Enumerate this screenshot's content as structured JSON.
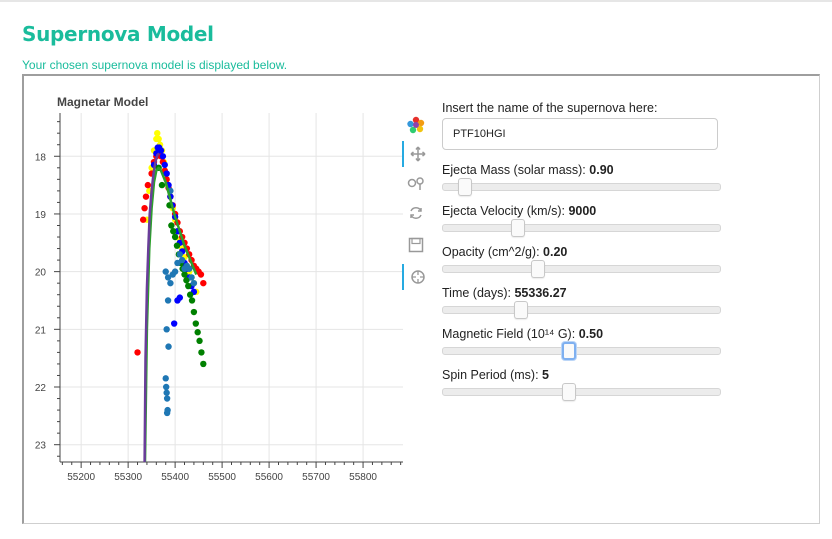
{
  "page": {
    "title": "Supernova Model",
    "subtitle": "Your chosen supernova model is displayed below."
  },
  "plot": {
    "title": "Magnetar Model"
  },
  "toolbar": [
    {
      "name": "bokeh-logo-icon"
    },
    {
      "name": "pan-tool-icon",
      "active": true
    },
    {
      "name": "box-zoom-tool-icon"
    },
    {
      "name": "reset-tool-icon"
    },
    {
      "name": "save-tool-icon"
    },
    {
      "name": "hover-tool-icon",
      "active": true
    }
  ],
  "form": {
    "name_label": "Insert the name of the supernova here:",
    "name_value": "PTF10HGI",
    "sliders": [
      {
        "id": "ejecta-mass",
        "label": "Ejecta Mass (solar mass):",
        "value": "0.90",
        "fraction": 0.08
      },
      {
        "id": "ejecta-velocity",
        "label": "Ejecta Velocity (km/s):",
        "value": "9000",
        "fraction": 0.27
      },
      {
        "id": "opacity",
        "label": "Opacity (cm^2/g):",
        "value": "0.20",
        "fraction": 0.34
      },
      {
        "id": "time",
        "label": "Time (days):",
        "value": "55336.27",
        "fraction": 0.28
      },
      {
        "id": "magnetic-field",
        "label": "Magnetic Field (10¹⁴ G):",
        "value": "0.50",
        "fraction": 0.45,
        "focus": true
      },
      {
        "id": "spin-period",
        "label": "Spin Period (ms):",
        "value": "5",
        "fraction": 0.45
      }
    ]
  },
  "chart_data": {
    "type": "scatter",
    "title": "Magnetar Model",
    "xlabel": "",
    "ylabel": "",
    "xlim": [
      55155,
      55885
    ],
    "ylim": [
      17.25,
      23.3
    ],
    "y_inverted": true,
    "xticks": [
      55200,
      55300,
      55400,
      55500,
      55600,
      55700,
      55800
    ],
    "yticks": [
      18,
      19,
      20,
      21,
      22,
      23
    ],
    "grid": true,
    "series": [
      {
        "color": "#ffff00",
        "x": [
          55340,
          55345,
          55350,
          55355,
          55360,
          55362,
          55365,
          55368,
          55372,
          55376,
          55380,
          55385,
          55390,
          55395,
          55400,
          55405,
          55410,
          55415,
          55420,
          55425,
          55430,
          55435,
          55440,
          55445
        ],
        "y": [
          19.1,
          18.6,
          18.2,
          17.9,
          17.7,
          17.6,
          17.7,
          17.8,
          17.9,
          18.1,
          18.3,
          18.5,
          18.7,
          18.9,
          19.1,
          19.3,
          19.45,
          19.6,
          19.75,
          19.9,
          20.0,
          20.1,
          20.2,
          20.35
        ]
      },
      {
        "color": "#ff0000",
        "x": [
          55320,
          55332,
          55335,
          55338,
          55342,
          55350,
          55355,
          55360,
          55363,
          55367,
          55370,
          55374,
          55378,
          55382,
          55386,
          55390,
          55395,
          55400,
          55405,
          55410,
          55415,
          55420,
          55425,
          55430,
          55435,
          55440,
          55445,
          55450,
          55455,
          55460
        ],
        "y": [
          21.4,
          19.1,
          18.9,
          18.7,
          18.5,
          18.3,
          18.1,
          18.0,
          17.95,
          17.95,
          18.0,
          18.1,
          18.25,
          18.4,
          18.55,
          18.7,
          18.85,
          19.0,
          19.15,
          19.3,
          19.4,
          19.5,
          19.6,
          19.7,
          19.8,
          19.9,
          19.95,
          20.0,
          20.05,
          20.2
        ]
      },
      {
        "color": "#0000ff",
        "x": [
          55355,
          55360,
          55363,
          55366,
          55370,
          55374,
          55378,
          55382,
          55386,
          55390,
          55394,
          55400,
          55405,
          55410,
          55415,
          55420,
          55425,
          55430,
          55435,
          55440,
          55405,
          55410,
          55398
        ],
        "y": [
          18.15,
          17.95,
          17.85,
          17.85,
          17.9,
          18.0,
          18.15,
          18.3,
          18.5,
          18.7,
          18.85,
          19.05,
          19.3,
          19.5,
          19.65,
          19.85,
          19.95,
          20.1,
          20.25,
          20.35,
          20.5,
          20.45,
          20.9
        ]
      },
      {
        "color": "#008000",
        "x": [
          55388,
          55392,
          55396,
          55400,
          55404,
          55408,
          55412,
          55416,
          55420,
          55424,
          55428,
          55432,
          55436,
          55440,
          55444,
          55448,
          55452,
          55456,
          55460,
          55365,
          55372
        ],
        "y": [
          18.85,
          19.2,
          19.3,
          19.4,
          19.55,
          19.7,
          19.85,
          19.95,
          20.05,
          20.15,
          20.25,
          20.4,
          20.5,
          20.7,
          20.9,
          21.05,
          21.2,
          21.4,
          21.6,
          18.2,
          18.5
        ]
      },
      {
        "color": "#1f77b4",
        "x": [
          55380,
          55385,
          55390,
          55395,
          55400,
          55405,
          55410,
          55415,
          55420,
          55425,
          55430,
          55435,
          55440,
          55385,
          55382,
          55386,
          55380,
          55381,
          55382,
          55383,
          55384,
          55383,
          55390
        ],
        "y": [
          20.0,
          20.1,
          20.2,
          20.05,
          20.0,
          19.85,
          19.7,
          19.8,
          19.95,
          19.9,
          19.95,
          20.1,
          20.2,
          20.5,
          21.0,
          21.3,
          21.85,
          22.0,
          22.1,
          22.2,
          22.4,
          22.45,
          18.6
        ]
      }
    ],
    "curves": [
      {
        "color": "#2ca02c",
        "x": [
          55336,
          55340,
          55345,
          55350,
          55355,
          55360,
          55365,
          55370,
          55380,
          55390,
          55400,
          55410,
          55420,
          55430,
          55440,
          55445
        ],
        "y": [
          23.3,
          21.0,
          19.6,
          18.9,
          18.45,
          18.25,
          18.2,
          18.25,
          18.45,
          18.75,
          19.05,
          19.3,
          19.55,
          19.75,
          19.95,
          20.05
        ]
      },
      {
        "color": "#6a3d9a",
        "x": [
          55335,
          55337,
          55340,
          55343,
          55346,
          55350,
          55354,
          55358,
          55362,
          55366
        ],
        "y": [
          23.3,
          21.5,
          20.3,
          19.6,
          19.0,
          18.6,
          18.3,
          18.1,
          17.98,
          17.95
        ]
      }
    ]
  }
}
